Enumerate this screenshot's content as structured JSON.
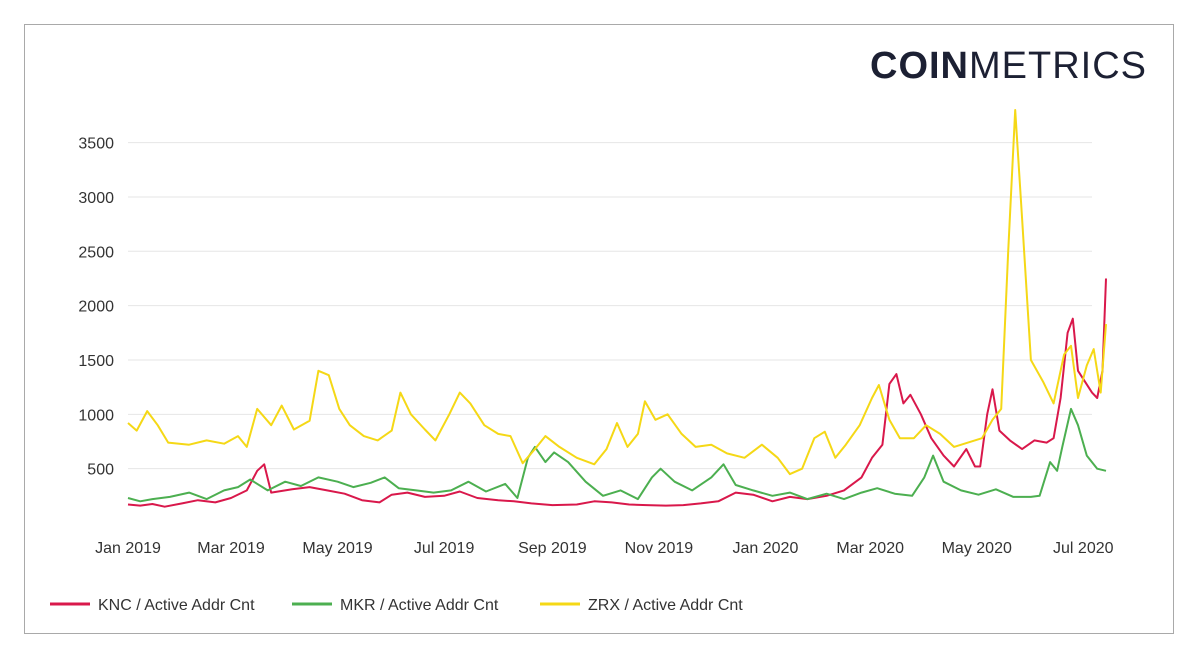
{
  "brand": {
    "bold": "COIN",
    "light": "METRICS"
  },
  "colors": {
    "knc": "#d9184b",
    "mkr": "#4caf50",
    "zrx": "#f5d816",
    "grid": "#e6e6e6",
    "text": "#333333"
  },
  "chart_data": {
    "type": "line",
    "title": "",
    "xlabel": "",
    "ylabel": "",
    "ylim": [
      0,
      3800
    ],
    "y_ticks": [
      500,
      1000,
      1500,
      2000,
      2500,
      3000,
      3500
    ],
    "x_ticks": [
      "Jan 2019",
      "Mar 2019",
      "May 2019",
      "Jul 2019",
      "Sep 2019",
      "Nov 2019",
      "Jan 2020",
      "Mar 2020",
      "May 2020",
      "Jul 2020"
    ],
    "x_range": [
      "2019-01-01",
      "2020-07-06"
    ],
    "grid": "horizontal",
    "legend_position": "bottom-left",
    "series": [
      {
        "name": "KNC / Active Addr Cnt",
        "color": "#d9184b",
        "points": [
          [
            "2019-01-01",
            170
          ],
          [
            "2019-01-08",
            160
          ],
          [
            "2019-01-15",
            175
          ],
          [
            "2019-01-22",
            150
          ],
          [
            "2019-02-01",
            180
          ],
          [
            "2019-02-10",
            210
          ],
          [
            "2019-02-20",
            190
          ],
          [
            "2019-03-01",
            230
          ],
          [
            "2019-03-10",
            300
          ],
          [
            "2019-03-16",
            480
          ],
          [
            "2019-03-20",
            540
          ],
          [
            "2019-03-24",
            280
          ],
          [
            "2019-04-05",
            310
          ],
          [
            "2019-04-15",
            330
          ],
          [
            "2019-04-25",
            300
          ],
          [
            "2019-05-05",
            270
          ],
          [
            "2019-05-15",
            210
          ],
          [
            "2019-05-25",
            190
          ],
          [
            "2019-06-01",
            260
          ],
          [
            "2019-06-10",
            280
          ],
          [
            "2019-06-20",
            240
          ],
          [
            "2019-07-01",
            250
          ],
          [
            "2019-07-10",
            290
          ],
          [
            "2019-07-20",
            230
          ],
          [
            "2019-08-01",
            210
          ],
          [
            "2019-08-10",
            200
          ],
          [
            "2019-08-20",
            180
          ],
          [
            "2019-09-01",
            165
          ],
          [
            "2019-09-15",
            170
          ],
          [
            "2019-09-25",
            200
          ],
          [
            "2019-10-05",
            190
          ],
          [
            "2019-10-15",
            170
          ],
          [
            "2019-10-25",
            165
          ],
          [
            "2019-11-05",
            160
          ],
          [
            "2019-11-15",
            165
          ],
          [
            "2019-11-25",
            180
          ],
          [
            "2019-12-05",
            200
          ],
          [
            "2019-12-15",
            280
          ],
          [
            "2019-12-25",
            260
          ],
          [
            "2020-01-05",
            200
          ],
          [
            "2020-01-15",
            240
          ],
          [
            "2020-01-25",
            220
          ],
          [
            "2020-02-05",
            250
          ],
          [
            "2020-02-15",
            300
          ],
          [
            "2020-02-25",
            420
          ],
          [
            "2020-03-02",
            600
          ],
          [
            "2020-03-08",
            720
          ],
          [
            "2020-03-12",
            1280
          ],
          [
            "2020-03-16",
            1370
          ],
          [
            "2020-03-20",
            1100
          ],
          [
            "2020-03-24",
            1180
          ],
          [
            "2020-03-30",
            1000
          ],
          [
            "2020-04-05",
            780
          ],
          [
            "2020-04-12",
            620
          ],
          [
            "2020-04-18",
            520
          ],
          [
            "2020-04-25",
            680
          ],
          [
            "2020-04-30",
            520
          ],
          [
            "2020-05-03",
            520
          ],
          [
            "2020-05-07",
            1000
          ],
          [
            "2020-05-10",
            1230
          ],
          [
            "2020-05-14",
            850
          ],
          [
            "2020-05-20",
            760
          ],
          [
            "2020-05-27",
            680
          ],
          [
            "2020-06-03",
            760
          ],
          [
            "2020-06-10",
            740
          ],
          [
            "2020-06-14",
            780
          ],
          [
            "2020-06-18",
            1150
          ],
          [
            "2020-06-22",
            1750
          ],
          [
            "2020-06-25",
            1880
          ],
          [
            "2020-06-28",
            1400
          ],
          [
            "2020-07-02",
            1300
          ],
          [
            "2020-07-06",
            1200
          ],
          [
            "2020-07-09",
            1150
          ],
          [
            "2020-07-12",
            1400
          ],
          [
            "2020-07-14",
            2250
          ]
        ]
      },
      {
        "name": "MKR / Active Addr Cnt",
        "color": "#4caf50",
        "points": [
          [
            "2019-01-01",
            230
          ],
          [
            "2019-01-08",
            200
          ],
          [
            "2019-01-15",
            220
          ],
          [
            "2019-01-25",
            240
          ],
          [
            "2019-02-05",
            280
          ],
          [
            "2019-02-15",
            220
          ],
          [
            "2019-02-25",
            300
          ],
          [
            "2019-03-05",
            330
          ],
          [
            "2019-03-12",
            400
          ],
          [
            "2019-03-22",
            300
          ],
          [
            "2019-04-01",
            380
          ],
          [
            "2019-04-10",
            340
          ],
          [
            "2019-04-20",
            420
          ],
          [
            "2019-05-01",
            380
          ],
          [
            "2019-05-10",
            330
          ],
          [
            "2019-05-20",
            370
          ],
          [
            "2019-05-28",
            420
          ],
          [
            "2019-06-05",
            320
          ],
          [
            "2019-06-15",
            300
          ],
          [
            "2019-06-25",
            280
          ],
          [
            "2019-07-05",
            300
          ],
          [
            "2019-07-15",
            380
          ],
          [
            "2019-07-25",
            290
          ],
          [
            "2019-08-05",
            360
          ],
          [
            "2019-08-12",
            230
          ],
          [
            "2019-08-18",
            600
          ],
          [
            "2019-08-22",
            700
          ],
          [
            "2019-08-28",
            560
          ],
          [
            "2019-09-02",
            650
          ],
          [
            "2019-09-10",
            560
          ],
          [
            "2019-09-20",
            380
          ],
          [
            "2019-09-30",
            250
          ],
          [
            "2019-10-10",
            300
          ],
          [
            "2019-10-20",
            220
          ],
          [
            "2019-10-28",
            420
          ],
          [
            "2019-11-02",
            500
          ],
          [
            "2019-11-10",
            380
          ],
          [
            "2019-11-20",
            300
          ],
          [
            "2019-12-01",
            420
          ],
          [
            "2019-12-08",
            540
          ],
          [
            "2019-12-15",
            350
          ],
          [
            "2019-12-25",
            300
          ],
          [
            "2020-01-05",
            250
          ],
          [
            "2020-01-15",
            280
          ],
          [
            "2020-01-25",
            220
          ],
          [
            "2020-02-05",
            270
          ],
          [
            "2020-02-15",
            220
          ],
          [
            "2020-02-25",
            280
          ],
          [
            "2020-03-05",
            320
          ],
          [
            "2020-03-15",
            270
          ],
          [
            "2020-03-25",
            250
          ],
          [
            "2020-04-01",
            420
          ],
          [
            "2020-04-06",
            620
          ],
          [
            "2020-04-12",
            380
          ],
          [
            "2020-04-22",
            300
          ],
          [
            "2020-05-02",
            260
          ],
          [
            "2020-05-12",
            310
          ],
          [
            "2020-05-22",
            240
          ],
          [
            "2020-06-01",
            240
          ],
          [
            "2020-06-06",
            250
          ],
          [
            "2020-06-12",
            560
          ],
          [
            "2020-06-16",
            480
          ],
          [
            "2020-06-19",
            700
          ],
          [
            "2020-06-24",
            1050
          ],
          [
            "2020-06-28",
            900
          ],
          [
            "2020-07-03",
            620
          ],
          [
            "2020-07-09",
            500
          ],
          [
            "2020-07-14",
            480
          ]
        ]
      },
      {
        "name": "ZRX / Active Addr Cnt",
        "color": "#f5d816",
        "points": [
          [
            "2019-01-01",
            920
          ],
          [
            "2019-01-06",
            850
          ],
          [
            "2019-01-12",
            1030
          ],
          [
            "2019-01-18",
            900
          ],
          [
            "2019-01-24",
            740
          ],
          [
            "2019-02-05",
            720
          ],
          [
            "2019-02-15",
            760
          ],
          [
            "2019-02-25",
            730
          ],
          [
            "2019-03-05",
            800
          ],
          [
            "2019-03-10",
            700
          ],
          [
            "2019-03-16",
            1050
          ],
          [
            "2019-03-24",
            900
          ],
          [
            "2019-03-30",
            1080
          ],
          [
            "2019-04-06",
            860
          ],
          [
            "2019-04-15",
            940
          ],
          [
            "2019-04-20",
            1400
          ],
          [
            "2019-04-26",
            1360
          ],
          [
            "2019-05-02",
            1050
          ],
          [
            "2019-05-08",
            900
          ],
          [
            "2019-05-16",
            800
          ],
          [
            "2019-05-24",
            760
          ],
          [
            "2019-06-01",
            850
          ],
          [
            "2019-06-06",
            1200
          ],
          [
            "2019-06-12",
            1000
          ],
          [
            "2019-06-20",
            860
          ],
          [
            "2019-06-26",
            760
          ],
          [
            "2019-07-04",
            1000
          ],
          [
            "2019-07-10",
            1200
          ],
          [
            "2019-07-16",
            1100
          ],
          [
            "2019-07-24",
            900
          ],
          [
            "2019-08-01",
            820
          ],
          [
            "2019-08-08",
            800
          ],
          [
            "2019-08-15",
            550
          ],
          [
            "2019-08-22",
            680
          ],
          [
            "2019-08-28",
            800
          ],
          [
            "2019-09-05",
            700
          ],
          [
            "2019-09-15",
            600
          ],
          [
            "2019-09-25",
            540
          ],
          [
            "2019-10-02",
            680
          ],
          [
            "2019-10-08",
            920
          ],
          [
            "2019-10-14",
            700
          ],
          [
            "2019-10-20",
            820
          ],
          [
            "2019-10-24",
            1120
          ],
          [
            "2019-10-30",
            950
          ],
          [
            "2019-11-06",
            1000
          ],
          [
            "2019-11-14",
            820
          ],
          [
            "2019-11-22",
            700
          ],
          [
            "2019-12-01",
            720
          ],
          [
            "2019-12-10",
            640
          ],
          [
            "2019-12-20",
            600
          ],
          [
            "2019-12-30",
            720
          ],
          [
            "2020-01-08",
            600
          ],
          [
            "2020-01-15",
            450
          ],
          [
            "2020-01-22",
            500
          ],
          [
            "2020-01-29",
            780
          ],
          [
            "2020-02-04",
            840
          ],
          [
            "2020-02-10",
            600
          ],
          [
            "2020-02-16",
            720
          ],
          [
            "2020-02-24",
            900
          ],
          [
            "2020-03-02",
            1150
          ],
          [
            "2020-03-06",
            1270
          ],
          [
            "2020-03-12",
            950
          ],
          [
            "2020-03-18",
            780
          ],
          [
            "2020-03-26",
            780
          ],
          [
            "2020-04-02",
            900
          ],
          [
            "2020-04-10",
            820
          ],
          [
            "2020-04-18",
            700
          ],
          [
            "2020-04-26",
            740
          ],
          [
            "2020-05-04",
            780
          ],
          [
            "2020-05-10",
            950
          ],
          [
            "2020-05-15",
            1050
          ],
          [
            "2020-05-19",
            2500
          ],
          [
            "2020-05-23",
            3800
          ],
          [
            "2020-05-27",
            2800
          ],
          [
            "2020-06-01",
            1500
          ],
          [
            "2020-06-08",
            1300
          ],
          [
            "2020-06-14",
            1100
          ],
          [
            "2020-06-20",
            1550
          ],
          [
            "2020-06-24",
            1630
          ],
          [
            "2020-06-28",
            1150
          ],
          [
            "2020-07-03",
            1450
          ],
          [
            "2020-07-07",
            1600
          ],
          [
            "2020-07-11",
            1200
          ],
          [
            "2020-07-14",
            1830
          ]
        ]
      }
    ]
  }
}
